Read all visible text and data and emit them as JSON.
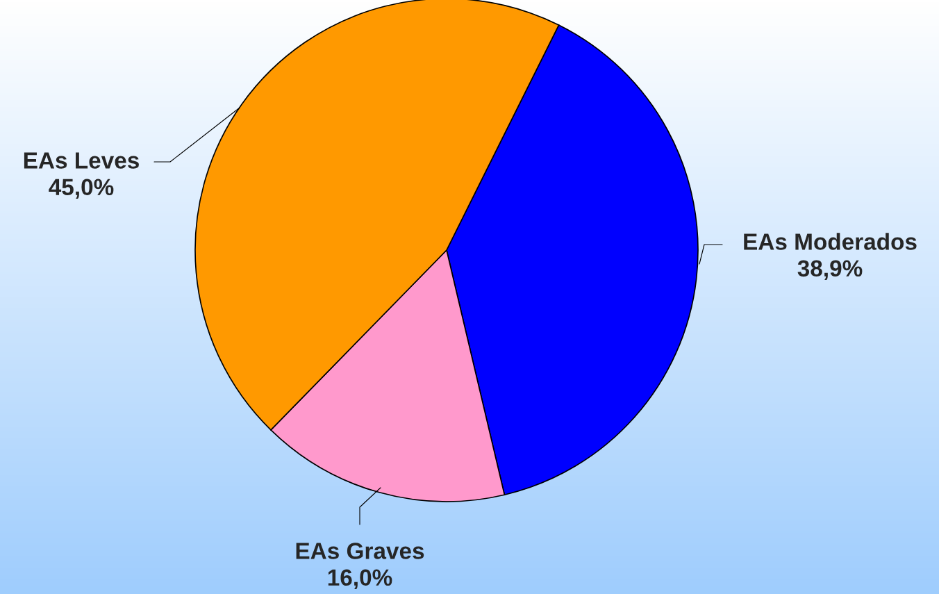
{
  "chart_data": {
    "type": "pie",
    "categories": [
      "EAs Moderados",
      "EAs Graves",
      "EAs Leves"
    ],
    "values": [
      38.9,
      16.0,
      45.0
    ],
    "value_labels": [
      "38,9%",
      "16,0%",
      "45,0%"
    ],
    "colors": [
      "#0000ff",
      "#ff99cc",
      "#ff9900"
    ]
  }
}
